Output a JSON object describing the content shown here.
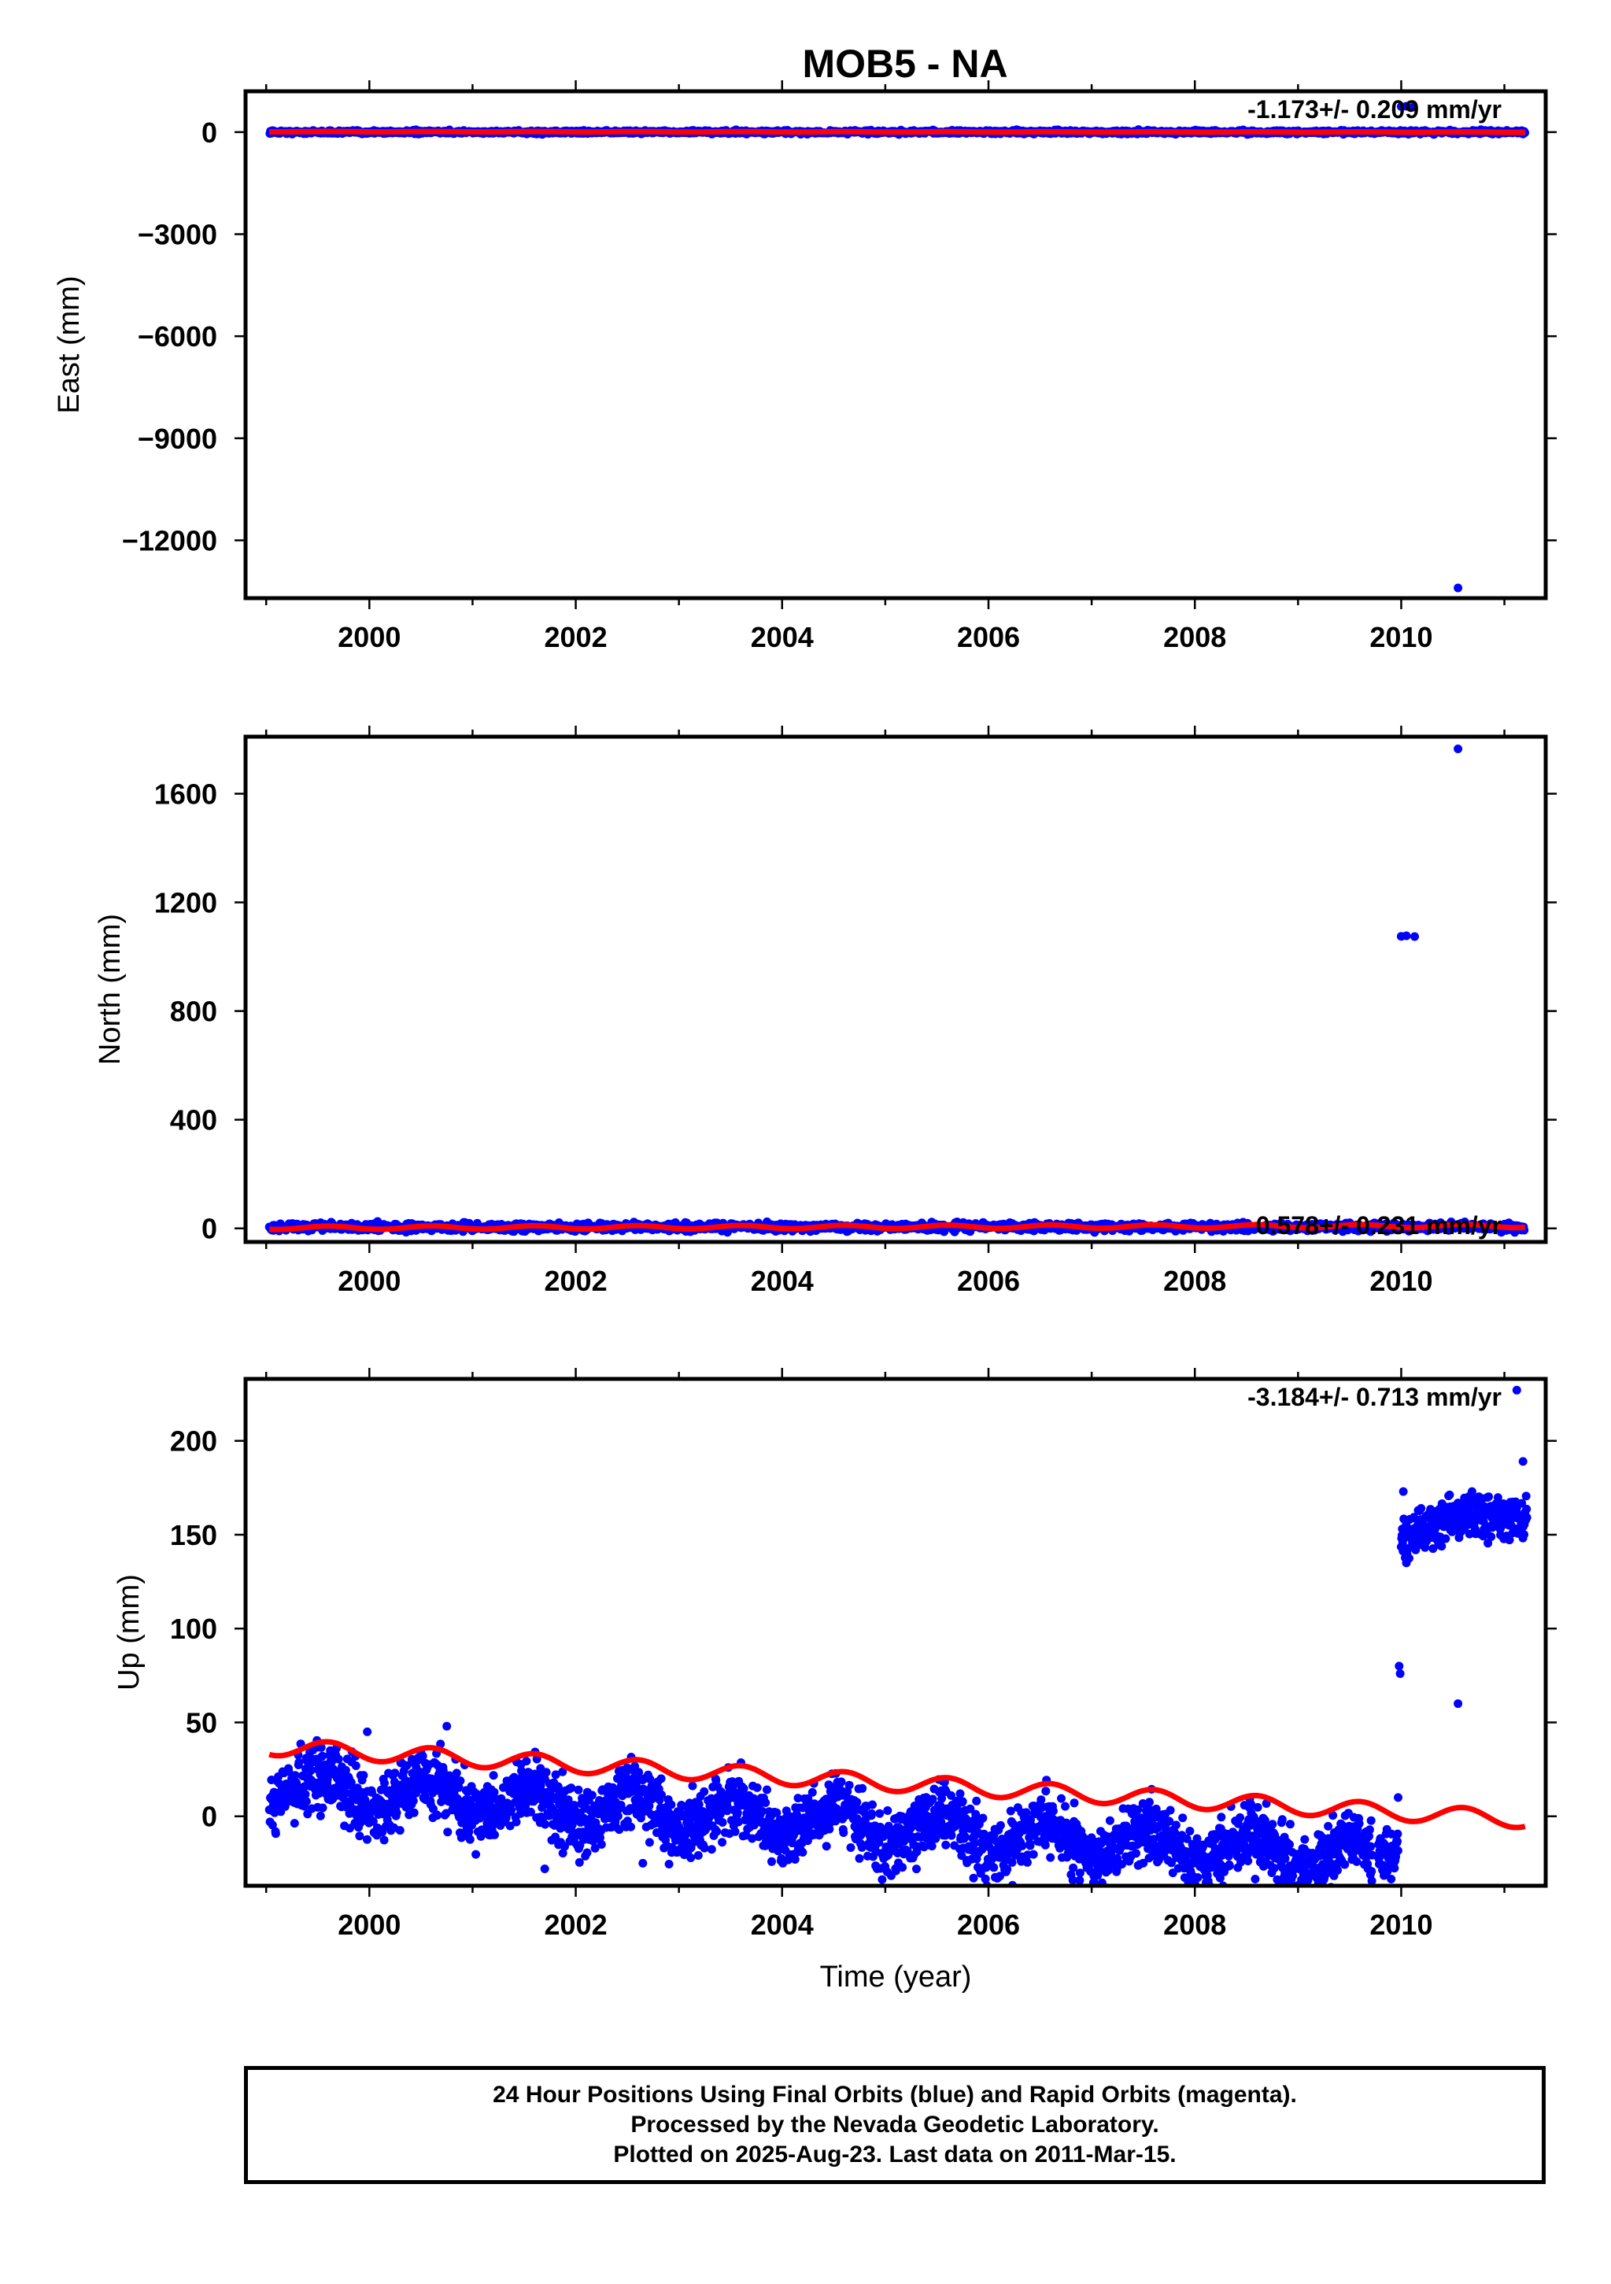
{
  "title": "MOB5 - NA",
  "colors": {
    "data": "#0000ff",
    "model": "#ff0000",
    "frame": "#000000"
  },
  "footer": {
    "line1": "24 Hour Positions Using Final Orbits (blue) and Rapid Orbits (magenta).",
    "line2": "Processed by the Nevada Geodetic Laboratory.",
    "line3": "Plotted on 2025-Aug-23. Last data on 2011-Mar-15."
  },
  "chart_data": [
    {
      "type": "scatter",
      "panel": "east",
      "ylabel": "East (mm)",
      "xlabel": "",
      "xlim": [
        1998.8,
        2011.4
      ],
      "ylim": [
        -13700,
        1200
      ],
      "xticks": [
        2000,
        2002,
        2004,
        2006,
        2008,
        2010
      ],
      "yticks": [
        0,
        -3000,
        -6000,
        -9000,
        -12000
      ],
      "yticklabels": [
        "0",
        "−3000",
        "−6000",
        "−9000",
        "−12000"
      ],
      "rate_label": "-1.173+/- 0.209 mm/yr",
      "series": [
        {
          "role": "data",
          "band": {
            "x_start": 1999.03,
            "x_end": 2011.2,
            "center": 0,
            "spread": 25
          },
          "outliers": [
            [
              2010.0,
              750
            ],
            [
              2010.05,
              760
            ],
            [
              2010.12,
              740
            ],
            [
              2010.55,
              -13400
            ]
          ]
        },
        {
          "role": "model",
          "model": {
            "intercept": 14,
            "ref_year": 1999.03,
            "slope": -1.173,
            "amplitude": 6,
            "x_start": 1999.03,
            "x_end": 2011.2
          }
        }
      ]
    },
    {
      "type": "scatter",
      "panel": "north",
      "ylabel": "North (mm)",
      "xlabel": "",
      "xlim": [
        1998.8,
        2011.4
      ],
      "ylim": [
        -50,
        1810
      ],
      "xticks": [
        2000,
        2002,
        2004,
        2006,
        2008,
        2010
      ],
      "yticks": [
        0,
        400,
        800,
        1200,
        1600
      ],
      "yticklabels": [
        "0",
        "400",
        "800",
        "1200",
        "1600"
      ],
      "rate_label": "0.578+/- 0.231 mm/yr",
      "series": [
        {
          "role": "data",
          "band": {
            "x_start": 1999.03,
            "x_end": 2011.2,
            "center": 5,
            "spread": 7
          },
          "outliers": [
            [
              2010.0,
              1075
            ],
            [
              2010.05,
              1077
            ],
            [
              2010.13,
              1074
            ],
            [
              2010.55,
              1765
            ],
            [
              2011.1,
              -15
            ]
          ]
        },
        {
          "role": "model",
          "model": {
            "intercept": 2,
            "ref_year": 1999.03,
            "slope": 0.578,
            "amplitude": 6,
            "x_start": 1999.03,
            "x_end": 2011.2
          }
        }
      ]
    },
    {
      "type": "scatter",
      "panel": "up",
      "ylabel": "Up (mm)",
      "xlabel": "Time (year)",
      "xlim": [
        1998.8,
        2011.4
      ],
      "ylim": [
        -37,
        233
      ],
      "xticks": [
        2000,
        2002,
        2004,
        2006,
        2008,
        2010
      ],
      "yticks": [
        0,
        50,
        100,
        150,
        200
      ],
      "yticklabels": [
        "0",
        "50",
        "100",
        "150",
        "200"
      ],
      "rate_label": "-3.184+/- 0.713 mm/yr",
      "series": [
        {
          "role": "data",
          "segments": [
            {
              "x_start": 1999.03,
              "x_end": 2009.72,
              "trend_start": 16,
              "trend_end": -22,
              "amplitude": 9,
              "spread": 8
            },
            {
              "x_start": 2009.78,
              "x_end": 2009.97,
              "trend_start": -18,
              "trend_end": -20,
              "amplitude": 0,
              "spread": 7
            },
            {
              "x_start": 2010.0,
              "x_end": 2011.22,
              "trend_start": 152,
              "trend_end": 163,
              "amplitude": 4,
              "spread": 6
            }
          ],
          "outliers": [
            [
              2009.98,
              80
            ],
            [
              2009.99,
              76
            ],
            [
              2009.97,
              10
            ],
            [
              2010.55,
              60
            ],
            [
              2011.12,
              227
            ],
            [
              2011.18,
              189
            ],
            [
              2001.7,
              -28
            ],
            [
              2002.65,
              -25
            ],
            [
              1999.98,
              45
            ],
            [
              2000.75,
              48
            ],
            [
              2010.02,
              173
            ],
            [
              2010.05,
              135
            ]
          ]
        },
        {
          "role": "model",
          "model": {
            "intercept": 37,
            "ref_year": 1999.03,
            "slope": -3.184,
            "amplitude": 4.5,
            "x_start": 1999.03,
            "x_end": 2011.2
          }
        }
      ]
    }
  ]
}
